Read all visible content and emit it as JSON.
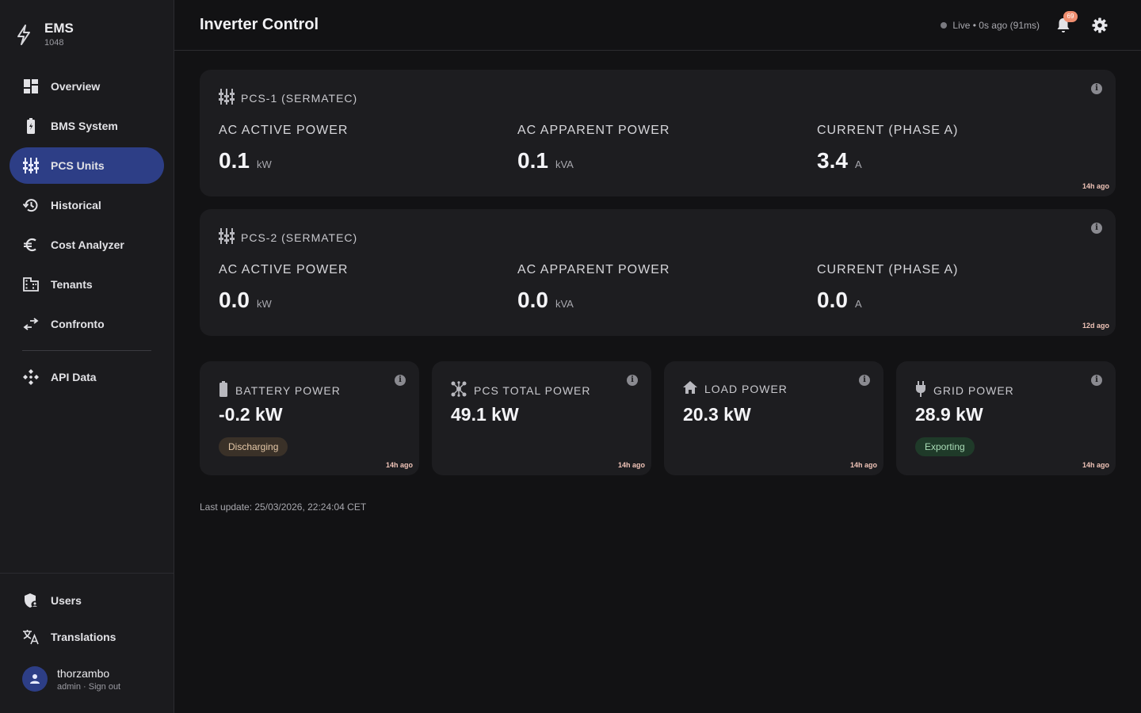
{
  "app": {
    "name": "EMS",
    "id": "1048"
  },
  "nav": {
    "items": [
      {
        "label": "Overview",
        "icon": "dashboard-icon"
      },
      {
        "label": "BMS System",
        "icon": "battery-icon"
      },
      {
        "label": "PCS Units",
        "icon": "inverter-icon",
        "active": true
      },
      {
        "label": "Historical",
        "icon": "history-icon"
      },
      {
        "label": "Cost Analyzer",
        "icon": "euro-icon"
      },
      {
        "label": "Tenants",
        "icon": "building-icon"
      },
      {
        "label": "Confronto",
        "icon": "compare-icon"
      }
    ],
    "api": {
      "label": "API Data",
      "icon": "api-icon"
    },
    "bottom": [
      {
        "label": "Users",
        "icon": "user-shield-icon"
      },
      {
        "label": "Translations",
        "icon": "translate-icon"
      }
    ]
  },
  "user": {
    "name": "thorzambo",
    "role": "admin",
    "separator": " · ",
    "signout": "Sign out"
  },
  "header": {
    "title": "Inverter Control",
    "live": "Live • 0s ago (91ms)",
    "notifications": "69"
  },
  "pcs": [
    {
      "title": "PCS-1 (SERMATEC)",
      "metrics": [
        {
          "label": "AC ACTIVE POWER",
          "value": "0.1",
          "unit": "kW"
        },
        {
          "label": "AC APPARENT POWER",
          "value": "0.1",
          "unit": "kVA"
        },
        {
          "label": "CURRENT (PHASE A)",
          "value": "3.4",
          "unit": "A"
        }
      ],
      "ago": "14h ago"
    },
    {
      "title": "PCS-2 (SERMATEC)",
      "metrics": [
        {
          "label": "AC ACTIVE POWER",
          "value": "0.0",
          "unit": "kW"
        },
        {
          "label": "AC APPARENT POWER",
          "value": "0.0",
          "unit": "kVA"
        },
        {
          "label": "CURRENT (PHASE A)",
          "value": "0.0",
          "unit": "A"
        }
      ],
      "ago": "12d ago"
    }
  ],
  "summary": [
    {
      "title": "BATTERY POWER",
      "value": "-0.2 kW",
      "chip": "Discharging",
      "ago": "14h ago",
      "icon": "battery-icon"
    },
    {
      "title": "PCS TOTAL POWER",
      "value": "49.1 kW",
      "ago": "14h ago",
      "icon": "hub-icon"
    },
    {
      "title": "LOAD POWER",
      "value": "20.3 kW",
      "ago": "14h ago",
      "icon": "home-icon"
    },
    {
      "title": "GRID POWER",
      "value": "28.9 kW",
      "chip": "Exporting",
      "ago": "14h ago",
      "icon": "plug-icon"
    }
  ],
  "last_update": "Last update: 25/03/2026, 22:24:04 CET",
  "colors": {
    "accent": "#2d3e86",
    "badge": "#f08e70",
    "discharging_bg": "#3a3128",
    "exporting_bg": "#1f3a29"
  }
}
